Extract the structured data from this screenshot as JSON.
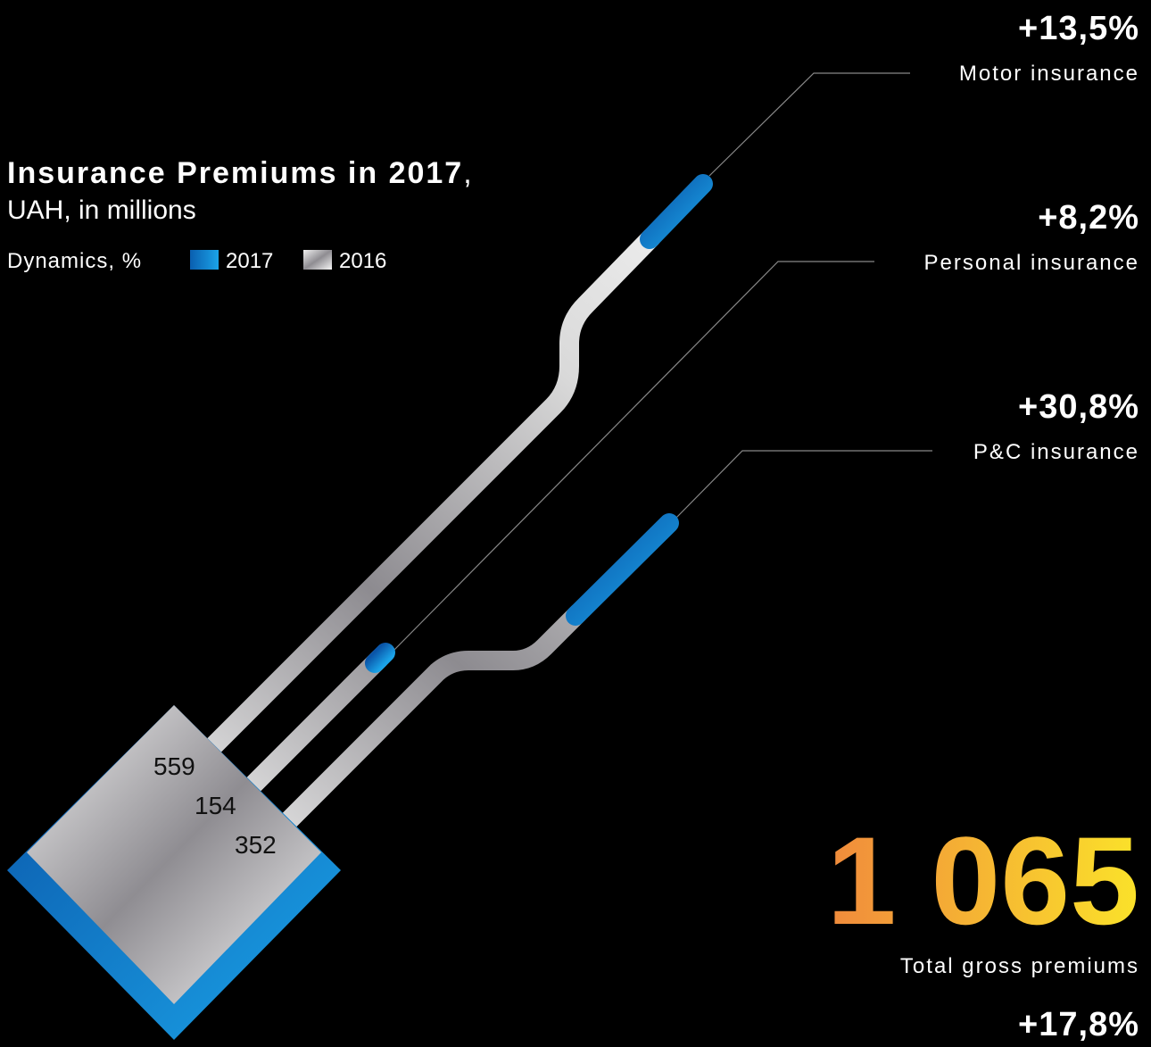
{
  "header": {
    "title": "Insurance Premiums in 2017",
    "title_suffix": ",",
    "subtitle": "UAH, in millions"
  },
  "legend": {
    "label": "Dynamics, %",
    "items": [
      "2017",
      "2016"
    ]
  },
  "segments": [
    {
      "name": "Motor insurance",
      "change": "+13,5%",
      "value": 559
    },
    {
      "name": "Personal insurance",
      "change": "+8,2%",
      "value": 154
    },
    {
      "name": "P&C insurance",
      "change": "+30,8%",
      "value": 352
    }
  ],
  "total": {
    "value": "1 065",
    "label": "Total gross premiums",
    "change": "+17,8%"
  }
}
